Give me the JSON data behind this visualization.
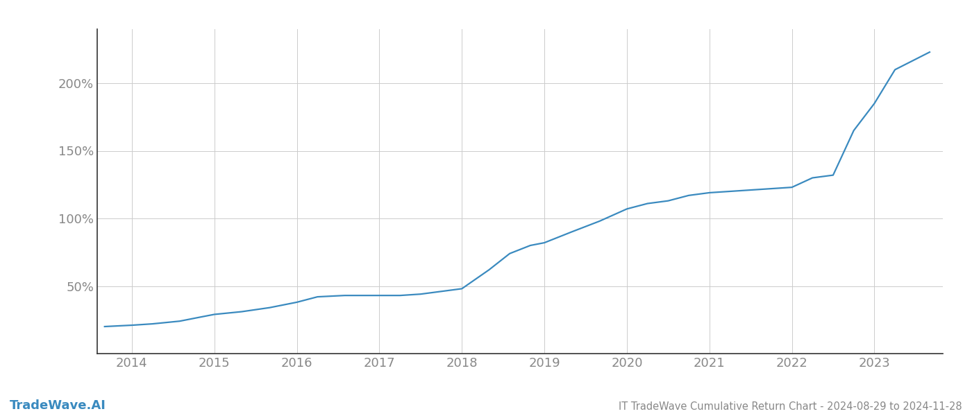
{
  "title": "IT TradeWave Cumulative Return Chart - 2024-08-29 to 2024-11-28",
  "watermark": "TradeWave.AI",
  "line_color": "#3a8abf",
  "background_color": "#ffffff",
  "grid_color": "#cccccc",
  "x_years": [
    2014,
    2015,
    2016,
    2017,
    2018,
    2019,
    2020,
    2021,
    2022,
    2023
  ],
  "x_values": [
    2013.67,
    2014.0,
    2014.25,
    2014.58,
    2014.83,
    2015.0,
    2015.33,
    2015.67,
    2016.0,
    2016.25,
    2016.58,
    2016.83,
    2017.0,
    2017.25,
    2017.5,
    2017.75,
    2018.0,
    2018.33,
    2018.58,
    2018.83,
    2019.0,
    2019.33,
    2019.67,
    2020.0,
    2020.25,
    2020.5,
    2020.75,
    2021.0,
    2021.25,
    2021.5,
    2021.75,
    2022.0,
    2022.25,
    2022.5,
    2022.75,
    2023.0,
    2023.25,
    2023.67
  ],
  "y_values": [
    20,
    21,
    22,
    24,
    27,
    29,
    31,
    34,
    38,
    42,
    43,
    43,
    43,
    43,
    44,
    46,
    48,
    62,
    74,
    80,
    82,
    90,
    98,
    107,
    111,
    113,
    117,
    119,
    120,
    121,
    122,
    123,
    130,
    132,
    165,
    185,
    210,
    223
  ],
  "ylim": [
    0,
    240
  ],
  "yticks": [
    50,
    100,
    150,
    200
  ],
  "ytick_labels": [
    "50%",
    "100%",
    "150%",
    "200%"
  ],
  "xlim": [
    2013.58,
    2023.83
  ],
  "title_fontsize": 10.5,
  "tick_fontsize": 13,
  "watermark_fontsize": 13,
  "line_width": 1.6,
  "spine_color": "#333333",
  "grid_linewidth": 0.7,
  "text_color": "#888888"
}
